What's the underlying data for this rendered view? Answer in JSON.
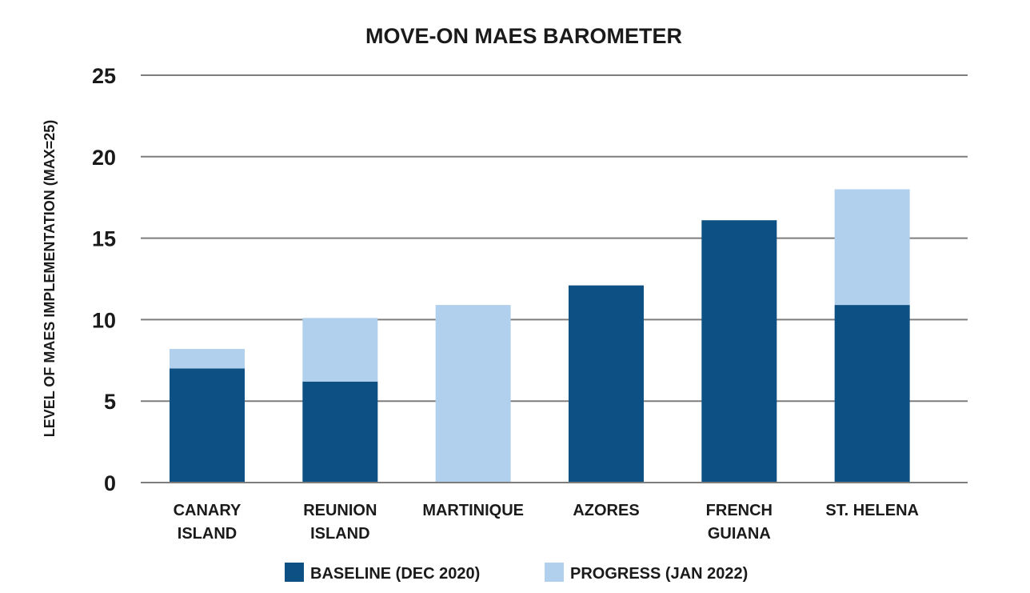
{
  "chart_data": {
    "type": "bar",
    "stacked": true,
    "title": "MOVE-ON MAES BAROMETER",
    "xlabel": "",
    "ylabel": "LEVEL OF MAES IMPLEMENTATION (MAX=25)",
    "ylim": [
      0,
      25
    ],
    "yticks": [
      "0",
      "5",
      "10",
      "15",
      "20",
      "25"
    ],
    "grid": true,
    "legend_position": "bottom",
    "categories": [
      [
        "CANARY",
        "ISLAND"
      ],
      [
        "REUNION",
        "ISLAND"
      ],
      [
        "MARTINIQUE"
      ],
      [
        "AZORES"
      ],
      [
        "FRENCH",
        "GUIANA"
      ],
      [
        "ST. HELENA"
      ]
    ],
    "series": [
      {
        "name": "BASELINE (DEC 2020)",
        "color": "#0d5083",
        "values": [
          7,
          6.2,
          0,
          12.1,
          16.1,
          10.9
        ]
      },
      {
        "name": "PROGRESS (JAN 2022)",
        "color": "#b0d0ed",
        "values": [
          1.2,
          3.9,
          10.9,
          0,
          0,
          7.1
        ]
      }
    ]
  }
}
